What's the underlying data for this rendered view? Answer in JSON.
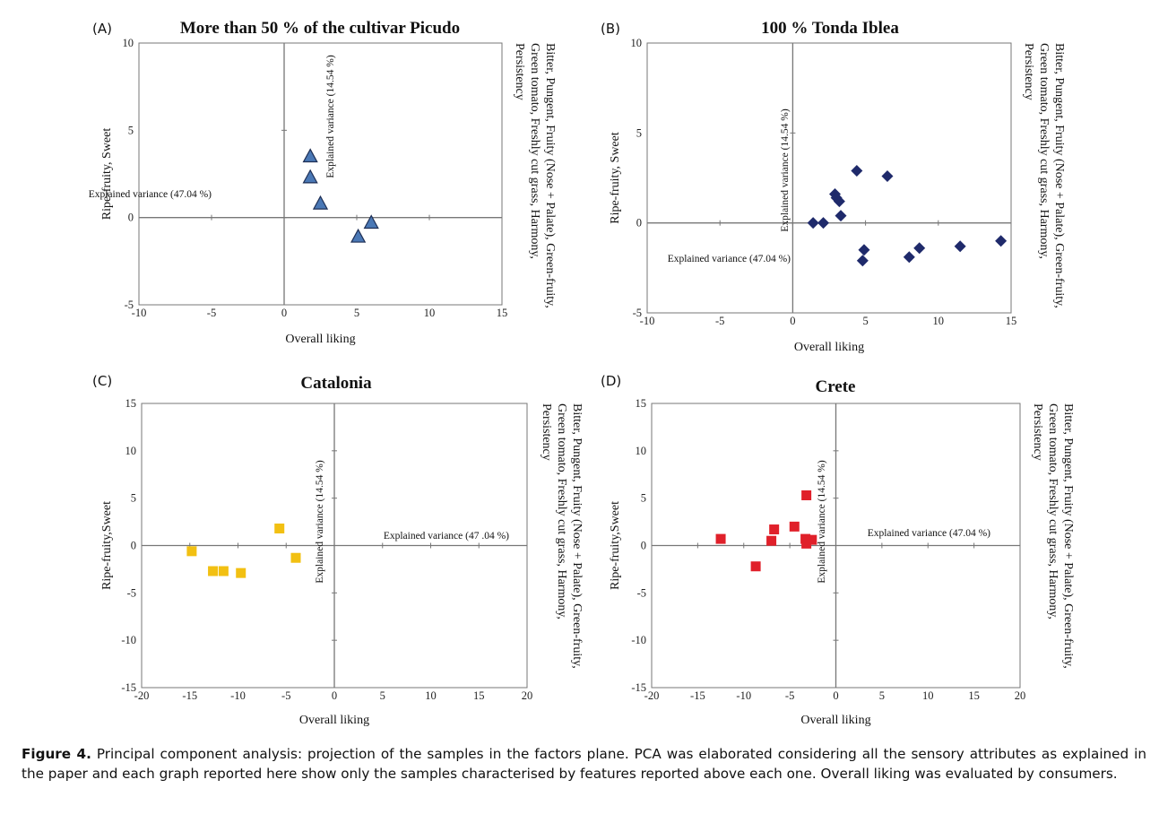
{
  "caption": {
    "label": "Figure 4.",
    "text": " Principal component analysis: projection of the samples in the factors plane. PCA was elaborated considering all the sensory attributes as explained in the paper and each graph reported here show only the samples characterised by features reported above each one. Overall liking was evaluated by consumers."
  },
  "chart_data": [
    {
      "panel": "(A)",
      "type": "scatter",
      "title": "More than 50 % of the cultivar Picudo",
      "xlabel": "Overall liking",
      "ylabel": "Ripe-fruity, Sweet",
      "right_label": [
        "Bitter, Pungent, Fruity (Nose + Palate), Green-fruity,",
        "Green tomato, Freshly cut grass, Harmony,",
        "Persistency"
      ],
      "xlim": [
        -10,
        15
      ],
      "ylim": [
        -5,
        10
      ],
      "xticks": [
        -10,
        -5,
        0,
        5,
        10,
        15
      ],
      "yticks": [
        -5,
        0,
        5,
        10
      ],
      "xtick_labels": [
        "-10",
        "-5",
        "0",
        "5",
        "10",
        "15"
      ],
      "ytick_labels": [
        "-5",
        "0",
        "5",
        "10"
      ],
      "annotations": [
        "Explained variance (47.04 %)",
        "Explained variance (14.54 %)"
      ],
      "marker": "triangle",
      "color": "#4a78b5",
      "points": [
        [
          1.8,
          3.5
        ],
        [
          1.8,
          2.3
        ],
        [
          2.5,
          0.8
        ],
        [
          5.1,
          -1.1
        ],
        [
          6.0,
          -0.3
        ]
      ]
    },
    {
      "panel": "(B)",
      "type": "scatter",
      "title": "100 % Tonda Iblea",
      "xlabel": "Overall liking",
      "ylabel": "Ripe-fruity, Sweet",
      "right_label": [
        "Bitter, Pungent, Fruity (Nose + Palate), Green-fruity,",
        "Green tomato, Freshly cut grass, Harmony,",
        "Persistency"
      ],
      "xlim": [
        -10,
        15
      ],
      "ylim": [
        -5,
        10
      ],
      "xticks": [
        -10,
        -5,
        0,
        5,
        10,
        15
      ],
      "yticks": [
        -5,
        0,
        5,
        10
      ],
      "xtick_labels": [
        "-10",
        "-5",
        "0",
        "5",
        "10",
        "15"
      ],
      "ytick_labels": [
        "-5",
        "0",
        "5",
        "10"
      ],
      "annotations": [
        "Explained variance (47.04 %)",
        "Explained variance (14.54 %)"
      ],
      "marker": "diamond",
      "color": "#1f2a6b",
      "points": [
        [
          1.4,
          0.0
        ],
        [
          2.1,
          0.0
        ],
        [
          2.9,
          1.6
        ],
        [
          3.0,
          1.4
        ],
        [
          3.2,
          1.2
        ],
        [
          3.3,
          0.4
        ],
        [
          4.4,
          2.9
        ],
        [
          4.8,
          -2.1
        ],
        [
          4.9,
          -1.5
        ],
        [
          6.5,
          2.6
        ],
        [
          8.0,
          -1.9
        ],
        [
          8.7,
          -1.4
        ],
        [
          11.5,
          -1.3
        ],
        [
          14.3,
          -1.0
        ]
      ]
    },
    {
      "panel": "(C)",
      "type": "scatter",
      "title": "Catalonia",
      "xlabel": "Overall liking",
      "ylabel": "Ripe-fruity,Sweet",
      "right_label": [
        "Bitter, Pungent, Fruity (Nose + Palate), Green-fruity,",
        "Green tomato, Freshly cut grass, Harmony,",
        "Persistency"
      ],
      "xlim": [
        -20,
        20
      ],
      "ylim": [
        -15,
        15
      ],
      "xticks": [
        -20,
        -15,
        -10,
        -5,
        0,
        5,
        10,
        15,
        20
      ],
      "yticks": [
        -15,
        -10,
        -5,
        0,
        5,
        10,
        15
      ],
      "xtick_labels": [
        "-20",
        "-15",
        "-10",
        "-5",
        "0",
        "5",
        "10",
        "15",
        "20"
      ],
      "ytick_labels": [
        "-15",
        "-10",
        "-5",
        "0",
        "5",
        "10",
        "15"
      ],
      "annotations": [
        "Explained variance (47 .04 %)",
        "Explained variance (14.54 %)"
      ],
      "marker": "square",
      "color": "#f2c012",
      "points": [
        [
          -14.8,
          -0.6
        ],
        [
          -12.6,
          -2.7
        ],
        [
          -11.5,
          -2.7
        ],
        [
          -9.7,
          -2.9
        ],
        [
          -5.7,
          1.8
        ],
        [
          -4.0,
          -1.3
        ]
      ]
    },
    {
      "panel": "(D)",
      "type": "scatter",
      "title": "Crete",
      "xlabel": "Overall liking",
      "ylabel": "Ripe-fruity,Sweet",
      "right_label": [
        "Bitter, Pungent, Fruity (Nose + Palate), Green-fruity,",
        "Green tomato, Freshly cut grass, Harmony,",
        "Persistency"
      ],
      "xlim": [
        -20,
        20
      ],
      "ylim": [
        -15,
        15
      ],
      "xticks": [
        -20,
        -15,
        -10,
        -5,
        0,
        5,
        10,
        15,
        20
      ],
      "yticks": [
        -15,
        -10,
        -5,
        0,
        5,
        10,
        15
      ],
      "xtick_labels": [
        "-20",
        "-15",
        "-10",
        "-5",
        "0",
        "5",
        "10",
        "15",
        "20"
      ],
      "ytick_labels": [
        "-15",
        "-10",
        "-5",
        "0",
        "5",
        "10",
        "15"
      ],
      "annotations": [
        "Explained variance (47.04 %)",
        "Explained variance (14.54 %)"
      ],
      "marker": "square",
      "color": "#e0202a",
      "points": [
        [
          -12.5,
          0.7
        ],
        [
          -8.7,
          -2.2
        ],
        [
          -7.0,
          0.5
        ],
        [
          -6.7,
          1.7
        ],
        [
          -4.5,
          2.0
        ],
        [
          -3.2,
          5.3
        ],
        [
          -3.3,
          0.7
        ],
        [
          -3.2,
          0.2
        ],
        [
          -2.6,
          0.6
        ]
      ]
    }
  ]
}
